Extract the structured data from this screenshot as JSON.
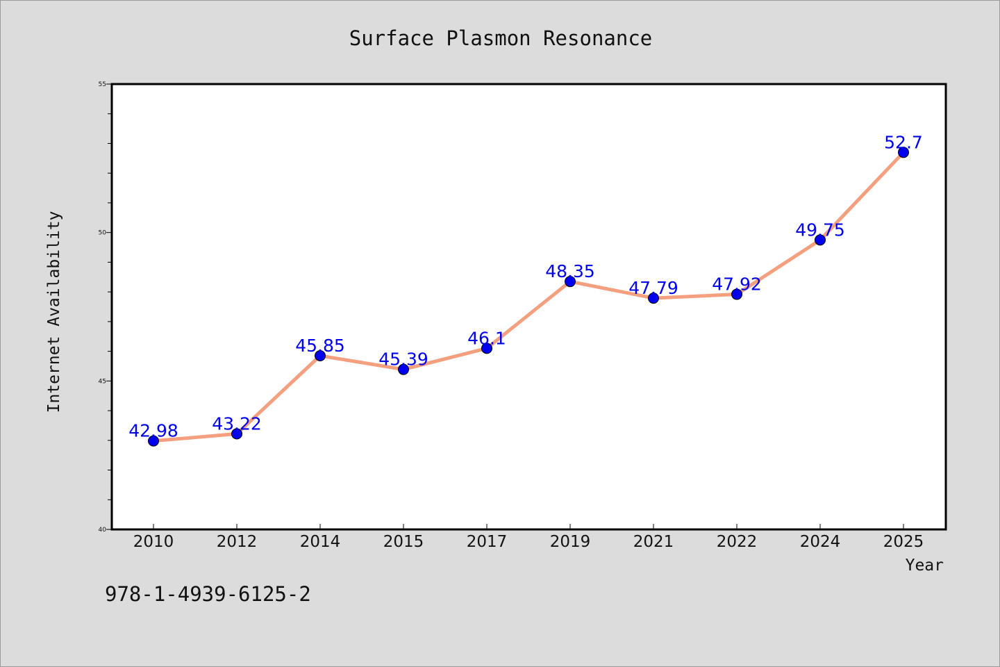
{
  "chart_data": {
    "type": "line",
    "title": "Surface Plasmon Resonance",
    "xlabel": "Year",
    "ylabel": "Internet Availability",
    "categories": [
      "2010",
      "2012",
      "2014",
      "2015",
      "2017",
      "2019",
      "2021",
      "2022",
      "2024",
      "2025"
    ],
    "series": [
      {
        "values": [
          42.98,
          43.22,
          45.85,
          45.39,
          46.1,
          48.35,
          47.79,
          47.92,
          49.75,
          52.7
        ],
        "labels": [
          "42.98",
          "43.22",
          "45.85",
          "45.39",
          "46.1",
          "48.35",
          "47.79",
          "47.92",
          "49.75",
          "52.7"
        ]
      }
    ],
    "ylim": [
      40,
      55
    ],
    "yticks": [
      "40",
      "45",
      "50",
      "55"
    ],
    "grid": false,
    "legend": "none",
    "colors": {
      "line": "#f4a07f",
      "marker": "#0000ee",
      "data_label": "#0000ee",
      "plot_background": "#ffffff",
      "figure_background": "#dcdcdc"
    }
  },
  "footer": {
    "isbn": "978-1-4939-6125-2"
  }
}
